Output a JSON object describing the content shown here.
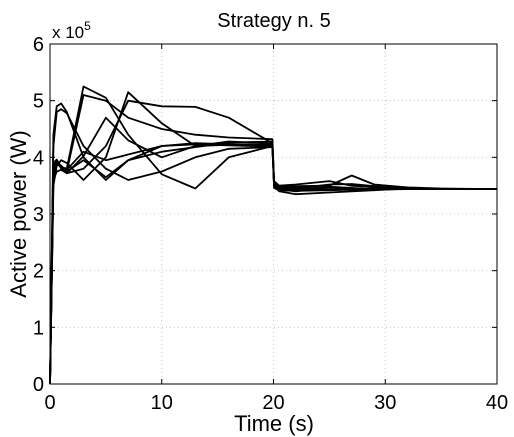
{
  "chart_data": {
    "type": "line",
    "title": "Strategy n. 5",
    "xlabel": "Time (s)",
    "ylabel": "Active power (W)",
    "y_multiplier": "x 10",
    "y_multiplier_exponent": "5",
    "xlim": [
      0,
      40
    ],
    "ylim": [
      0,
      600000
    ],
    "x_ticks": [
      0,
      10,
      20,
      30,
      40
    ],
    "x_tick_labels": [
      "0",
      "10",
      "20",
      "30",
      "40"
    ],
    "y_ticks": [
      0,
      100000,
      200000,
      300000,
      400000,
      500000,
      600000
    ],
    "y_tick_labels": [
      "0",
      "1",
      "2",
      "3",
      "4",
      "5",
      "6"
    ],
    "grid": true,
    "grid_style": "dotted",
    "line_color": "#000000",
    "series": [
      {
        "x": [
          0,
          0.3,
          0.6,
          1,
          1.5,
          3,
          5,
          7,
          10,
          13,
          16,
          19.9,
          20.05,
          20.5,
          22,
          25,
          27,
          29,
          32,
          35,
          40
        ],
        "y": [
          0,
          420000,
          480000,
          485000,
          478000,
          420000,
          380000,
          360000,
          375000,
          400000,
          415000,
          418000,
          355000,
          345000,
          342000,
          343000,
          343000,
          344000,
          344000,
          344000,
          344000
        ]
      },
      {
        "x": [
          0,
          0.3,
          0.6,
          1,
          1.5,
          3,
          5,
          7,
          10,
          13,
          16,
          19.9,
          20.05,
          20.5,
          22,
          25,
          27,
          29,
          32,
          35,
          40
        ],
        "y": [
          0,
          440000,
          490000,
          495000,
          480000,
          400000,
          360000,
          395000,
          420000,
          425000,
          423000,
          422000,
          350000,
          340000,
          335000,
          338000,
          340000,
          342000,
          345000,
          344000,
          344000
        ]
      },
      {
        "x": [
          0,
          0.3,
          0.6,
          1,
          1.5,
          3,
          5,
          7,
          10,
          13,
          16,
          19.9,
          20.05,
          20.5,
          22,
          25,
          27,
          29,
          32,
          35,
          40
        ],
        "y": [
          0,
          380000,
          392000,
          385000,
          372000,
          380000,
          420000,
          500000,
          490000,
          489000,
          470000,
          425000,
          358000,
          350000,
          352000,
          358000,
          350000,
          347000,
          345000,
          344000,
          344000
        ]
      },
      {
        "x": [
          0,
          0.3,
          0.6,
          1,
          1.5,
          3,
          5,
          7,
          10,
          13,
          16,
          19.9,
          20.05,
          20.5,
          22,
          25,
          27,
          29,
          32,
          35,
          40
        ],
        "y": [
          0,
          350000,
          385000,
          395000,
          390000,
          360000,
          400000,
          515000,
          460000,
          420000,
          422000,
          420000,
          348000,
          341000,
          345000,
          352000,
          353000,
          349000,
          346000,
          344000,
          344000
        ]
      },
      {
        "x": [
          0,
          0.3,
          0.6,
          1,
          1.5,
          3,
          5,
          7,
          10,
          13,
          16,
          19.9,
          20.05,
          20.5,
          22,
          25,
          27,
          29,
          32,
          35,
          40
        ],
        "y": [
          0,
          360000,
          375000,
          378000,
          372000,
          402000,
          470000,
          430000,
          400000,
          420000,
          428000,
          424000,
          352000,
          344000,
          344000,
          346000,
          345000,
          344000,
          344000,
          344000,
          344000
        ]
      },
      {
        "x": [
          0,
          0.3,
          0.6,
          1,
          1.5,
          3,
          5,
          7,
          10,
          13,
          16,
          19.9,
          20.05,
          20.5,
          22,
          25,
          27,
          29,
          32,
          35,
          40
        ],
        "y": [
          0,
          380000,
          390000,
          385000,
          375000,
          510000,
          500000,
          470000,
          450000,
          440000,
          435000,
          432000,
          356000,
          348000,
          349000,
          350000,
          368000,
          352000,
          347000,
          345000,
          344000
        ]
      },
      {
        "x": [
          0,
          0.3,
          0.6,
          1,
          1.5,
          3,
          5,
          7,
          10,
          13,
          16,
          19.9,
          20.05,
          20.5,
          22,
          25,
          27,
          29,
          32,
          35,
          40
        ],
        "y": [
          0,
          370000,
          388000,
          383000,
          380000,
          525000,
          505000,
          440000,
          370000,
          345000,
          400000,
          420000,
          350000,
          344000,
          340000,
          348000,
          346000,
          343000,
          344000,
          344000,
          344000
        ]
      },
      {
        "x": [
          0,
          0.3,
          0.6,
          1,
          1.5,
          3,
          5,
          7,
          10,
          13,
          16,
          19.9,
          20.05,
          20.5,
          22,
          25,
          27,
          29,
          32,
          35,
          40
        ],
        "y": [
          0,
          385000,
          395000,
          380000,
          378000,
          410000,
          395000,
          405000,
          420000,
          423000,
          421000,
          419000,
          346000,
          342000,
          341000,
          342000,
          343000,
          344000,
          344000,
          344000,
          344000
        ]
      },
      {
        "x": [
          0,
          0.3,
          0.6,
          1,
          1.5,
          3,
          5,
          7,
          10,
          13,
          16,
          19.9,
          20.05,
          20.5,
          22,
          25,
          27,
          29,
          32,
          35,
          40
        ],
        "y": [
          0,
          390000,
          396000,
          383000,
          375000,
          395000,
          365000,
          395000,
          410000,
          418000,
          426000,
          428000,
          353000,
          347000,
          346000,
          347000,
          345000,
          344000,
          344000,
          344000,
          344000
        ]
      }
    ]
  }
}
